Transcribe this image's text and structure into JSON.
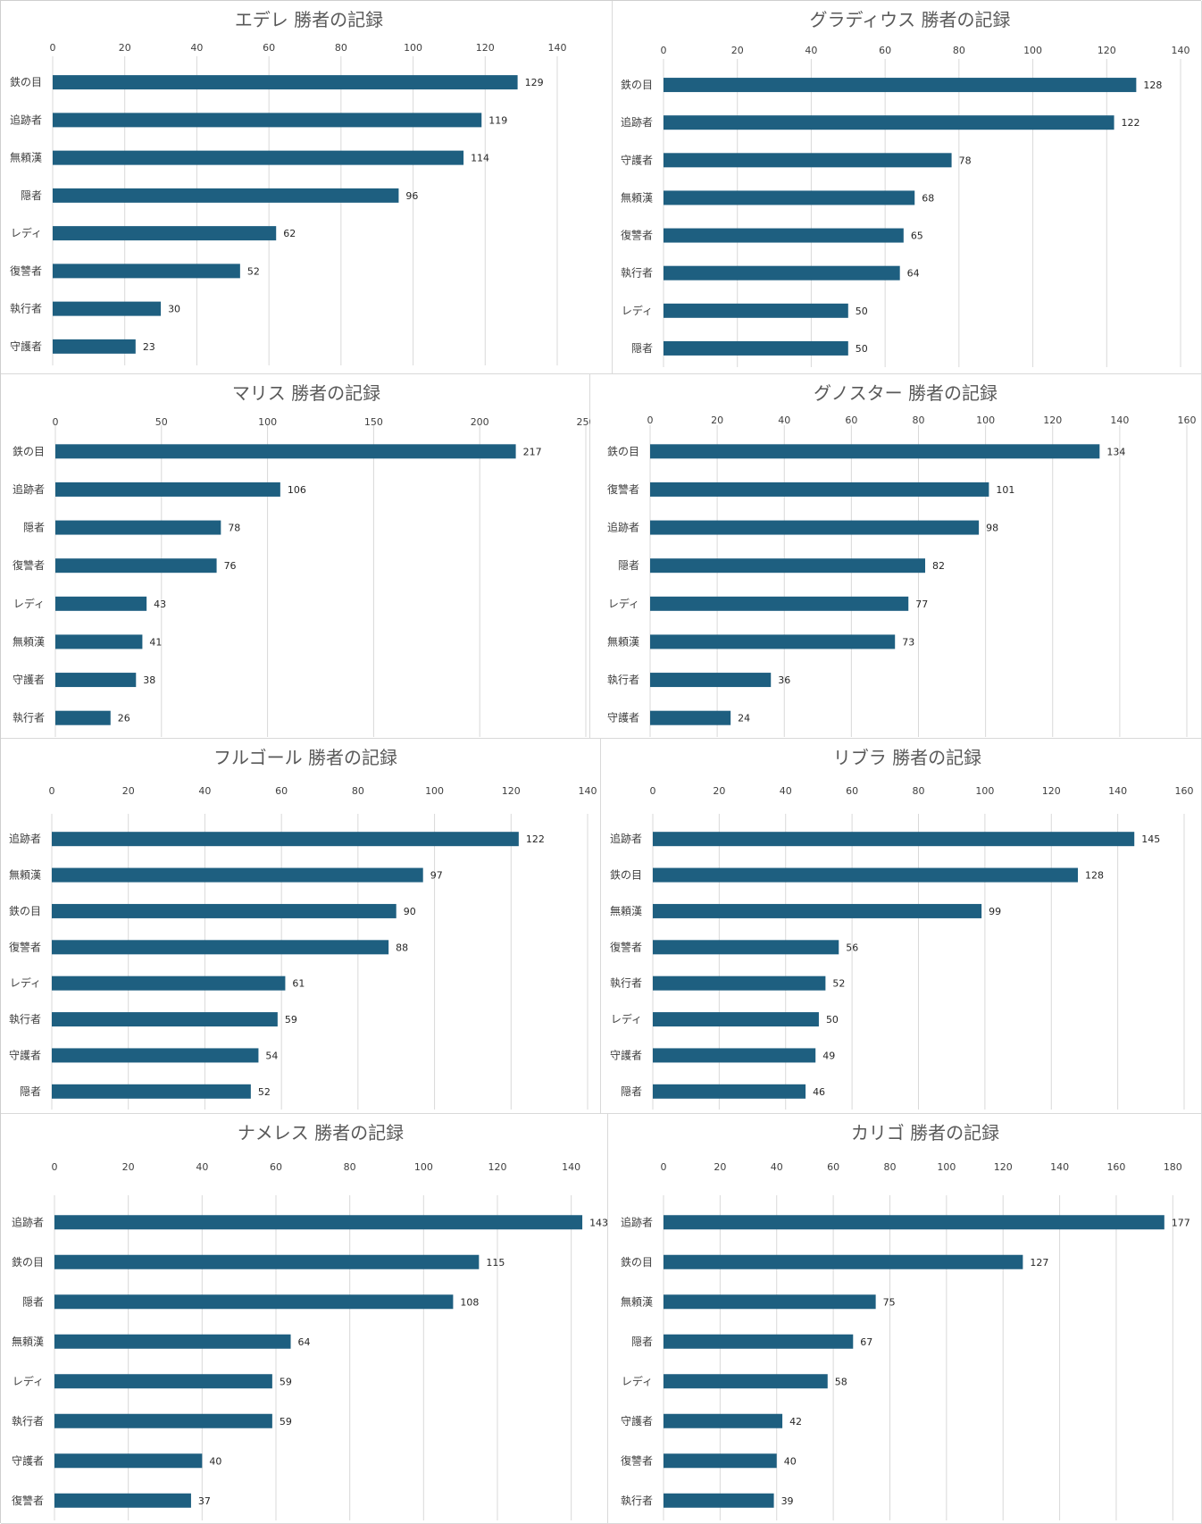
{
  "chart_data": [
    {
      "type": "bar",
      "title": "エデレ 勝者の記録",
      "categories": [
        "鉄の目",
        "追跡者",
        "無頼漢",
        "隠者",
        "レディ",
        "復讐者",
        "執行者",
        "守護者"
      ],
      "values": [
        129,
        119,
        114,
        96,
        62,
        52,
        30,
        23
      ],
      "xlim": [
        0,
        140
      ],
      "ticks": [
        "0",
        "20",
        "40",
        "60",
        "80",
        "100",
        "120",
        "140"
      ],
      "grid": true,
      "color": "#1e5f80"
    },
    {
      "type": "bar",
      "title": "グラディウス 勝者の記録",
      "categories": [
        "鉄の目",
        "追跡者",
        "守護者",
        "無頼漢",
        "復讐者",
        "執行者",
        "レディ",
        "隠者"
      ],
      "values": [
        128,
        122,
        78,
        68,
        65,
        64,
        50,
        50
      ],
      "xlim": [
        0,
        140
      ],
      "ticks": [
        "0",
        "20",
        "40",
        "60",
        "80",
        "100",
        "120",
        "140"
      ],
      "grid": true,
      "color": "#1e5f80"
    },
    {
      "type": "bar",
      "title": "マリス 勝者の記録",
      "categories": [
        "鉄の目",
        "追跡者",
        "隠者",
        "復讐者",
        "レディ",
        "無頼漢",
        "守護者",
        "執行者"
      ],
      "values": [
        217,
        106,
        78,
        76,
        43,
        41,
        38,
        26
      ],
      "xlim": [
        0,
        250
      ],
      "ticks": [
        "0",
        "50",
        "100",
        "150",
        "200",
        "250"
      ],
      "grid": true,
      "color": "#1e5f80"
    },
    {
      "type": "bar",
      "title": "グノスター 勝者の記録",
      "categories": [
        "鉄の目",
        "復讐者",
        "追跡者",
        "隠者",
        "レディ",
        "無頼漢",
        "執行者",
        "守護者"
      ],
      "values": [
        134,
        101,
        98,
        82,
        77,
        73,
        36,
        24
      ],
      "xlim": [
        0,
        160
      ],
      "ticks": [
        "0",
        "20",
        "40",
        "60",
        "80",
        "100",
        "120",
        "140",
        "160"
      ],
      "grid": true,
      "color": "#1e5f80"
    },
    {
      "type": "bar",
      "title": "フルゴール 勝者の記録",
      "categories": [
        "追跡者",
        "無頼漢",
        "鉄の目",
        "復讐者",
        "レディ",
        "執行者",
        "守護者",
        "隠者"
      ],
      "values": [
        122,
        97,
        90,
        88,
        61,
        59,
        54,
        52
      ],
      "xlim": [
        0,
        140
      ],
      "ticks": [
        "0",
        "20",
        "40",
        "60",
        "80",
        "100",
        "120",
        "140"
      ],
      "grid": true,
      "color": "#1e5f80"
    },
    {
      "type": "bar",
      "title": "リブラ 勝者の記録",
      "categories": [
        "追跡者",
        "鉄の目",
        "無頼漢",
        "復讐者",
        "執行者",
        "レディ",
        "守護者",
        "隠者"
      ],
      "values": [
        145,
        128,
        99,
        56,
        52,
        50,
        49,
        46
      ],
      "xlim": [
        0,
        160
      ],
      "ticks": [
        "0",
        "20",
        "40",
        "60",
        "80",
        "100",
        "120",
        "140",
        "160"
      ],
      "grid": true,
      "color": "#1e5f80"
    },
    {
      "type": "bar",
      "title": "ナメレス 勝者の記録",
      "categories": [
        "追跡者",
        "鉄の目",
        "隠者",
        "無頼漢",
        "レディ",
        "執行者",
        "守護者",
        "復讐者"
      ],
      "values": [
        143,
        115,
        108,
        64,
        59,
        59,
        40,
        37
      ],
      "xlim": [
        0,
        150
      ],
      "ticks": [
        "0",
        "20",
        "40",
        "60",
        "80",
        "100",
        "120",
        "140"
      ],
      "grid": true,
      "color": "#1e5f80"
    },
    {
      "type": "bar",
      "title": "カリゴ 勝者の記録",
      "categories": [
        "追跡者",
        "鉄の目",
        "無頼漢",
        "隠者",
        "レディ",
        "守護者",
        "復讐者",
        "執行者"
      ],
      "values": [
        177,
        127,
        75,
        67,
        58,
        42,
        40,
        39
      ],
      "xlim": [
        0,
        190
      ],
      "ticks": [
        "0",
        "20",
        "40",
        "60",
        "80",
        "100",
        "120",
        "140",
        "160",
        "180"
      ],
      "grid": true,
      "color": "#1e5f80"
    }
  ]
}
